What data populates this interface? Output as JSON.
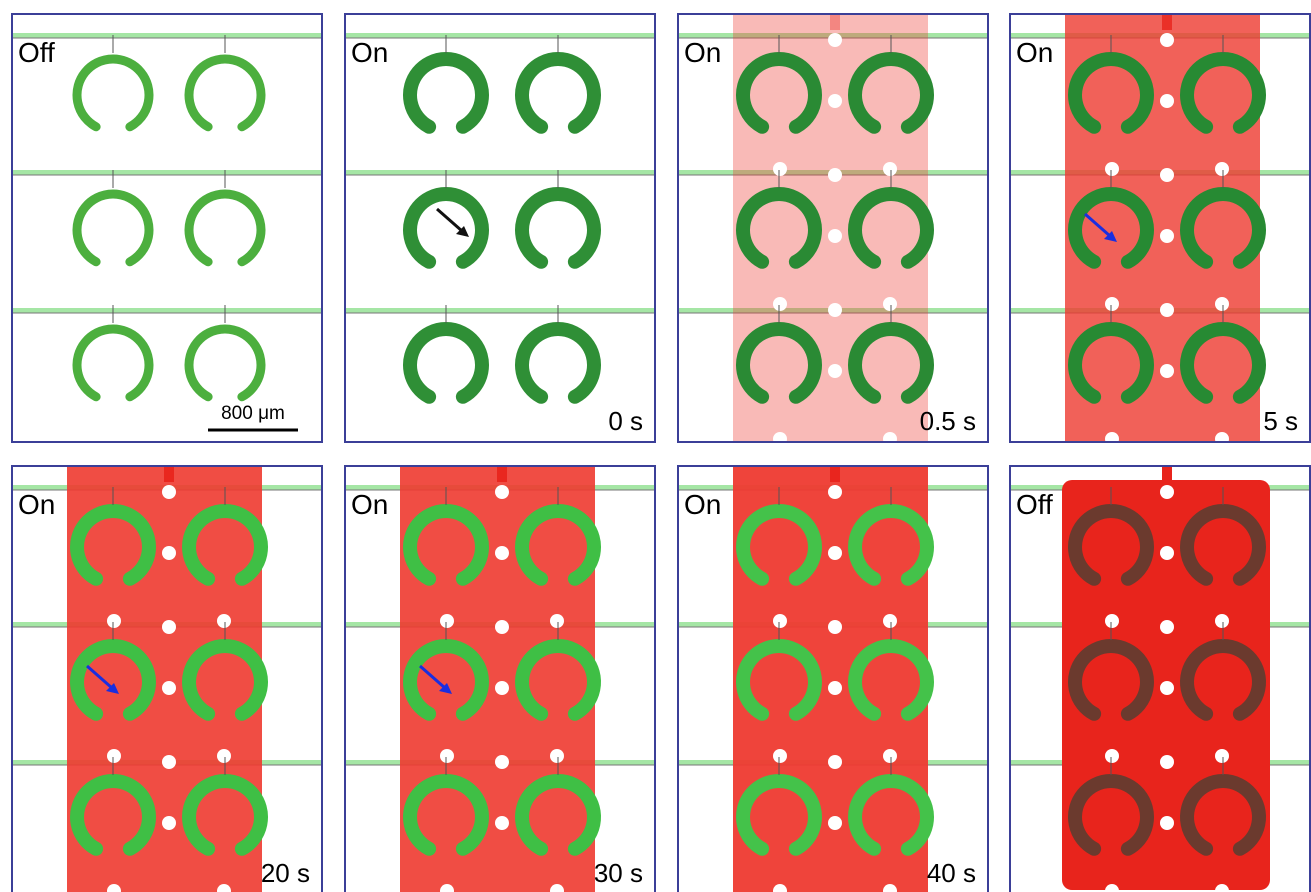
{
  "panels": [
    {
      "state": "Off",
      "scale_bar": "800 μm"
    },
    {
      "state": "On",
      "time": "0 s"
    },
    {
      "state": "On",
      "time": "0.5 s"
    },
    {
      "state": "On",
      "time": "5 s"
    },
    {
      "state": "On",
      "time": "20 s"
    },
    {
      "state": "On",
      "time": "30 s"
    },
    {
      "state": "On",
      "time": "40 s"
    },
    {
      "state": "Off"
    }
  ]
}
